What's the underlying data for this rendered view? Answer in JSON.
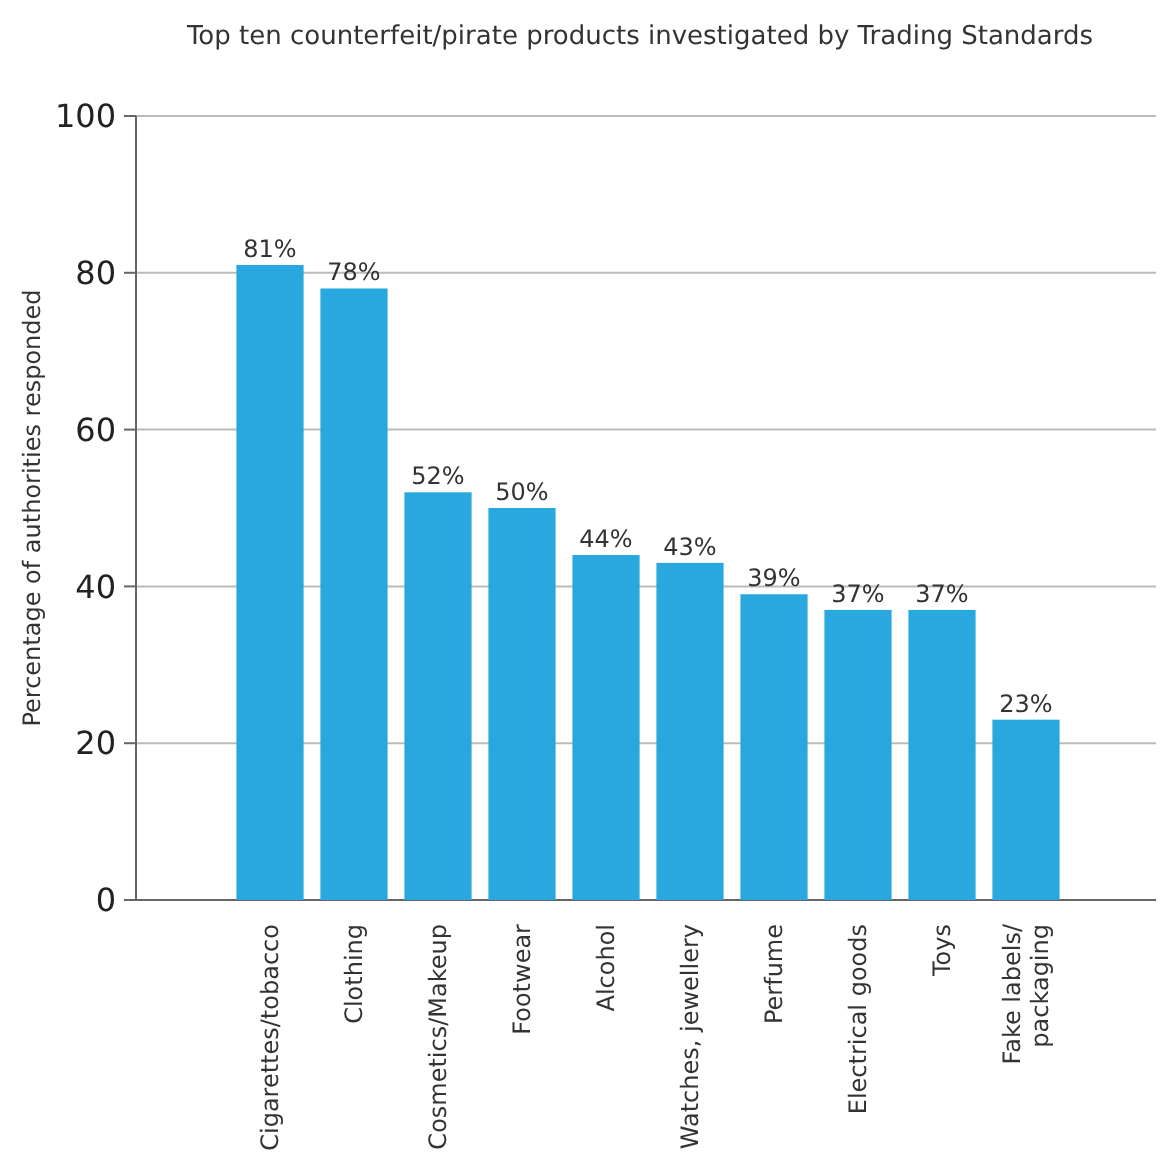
{
  "chart_data": {
    "type": "bar",
    "title": "Top ten counterfeit/pirate products investigated by Trading Standards",
    "ylabel": "Percentage of authorities responded",
    "categories": [
      "Cigarettes/tobacco",
      "Clothing",
      "Cosmetics/Makeup",
      "Footwear",
      "Alcohol",
      "Watches, jewellery",
      "Perfume",
      "Electrical goods",
      "Toys",
      "Fake labels/ packaging"
    ],
    "values": [
      81,
      78,
      52,
      50,
      44,
      43,
      39,
      37,
      37,
      23
    ],
    "value_labels": [
      "81%",
      "78%",
      "52%",
      "50%",
      "44%",
      "43%",
      "39%",
      "37%",
      "37%",
      "23%"
    ],
    "color": "#29a8e0",
    "ylim": [
      0,
      100
    ],
    "yticks": [
      0,
      20,
      40,
      60,
      80,
      100
    ],
    "grid": "y"
  }
}
